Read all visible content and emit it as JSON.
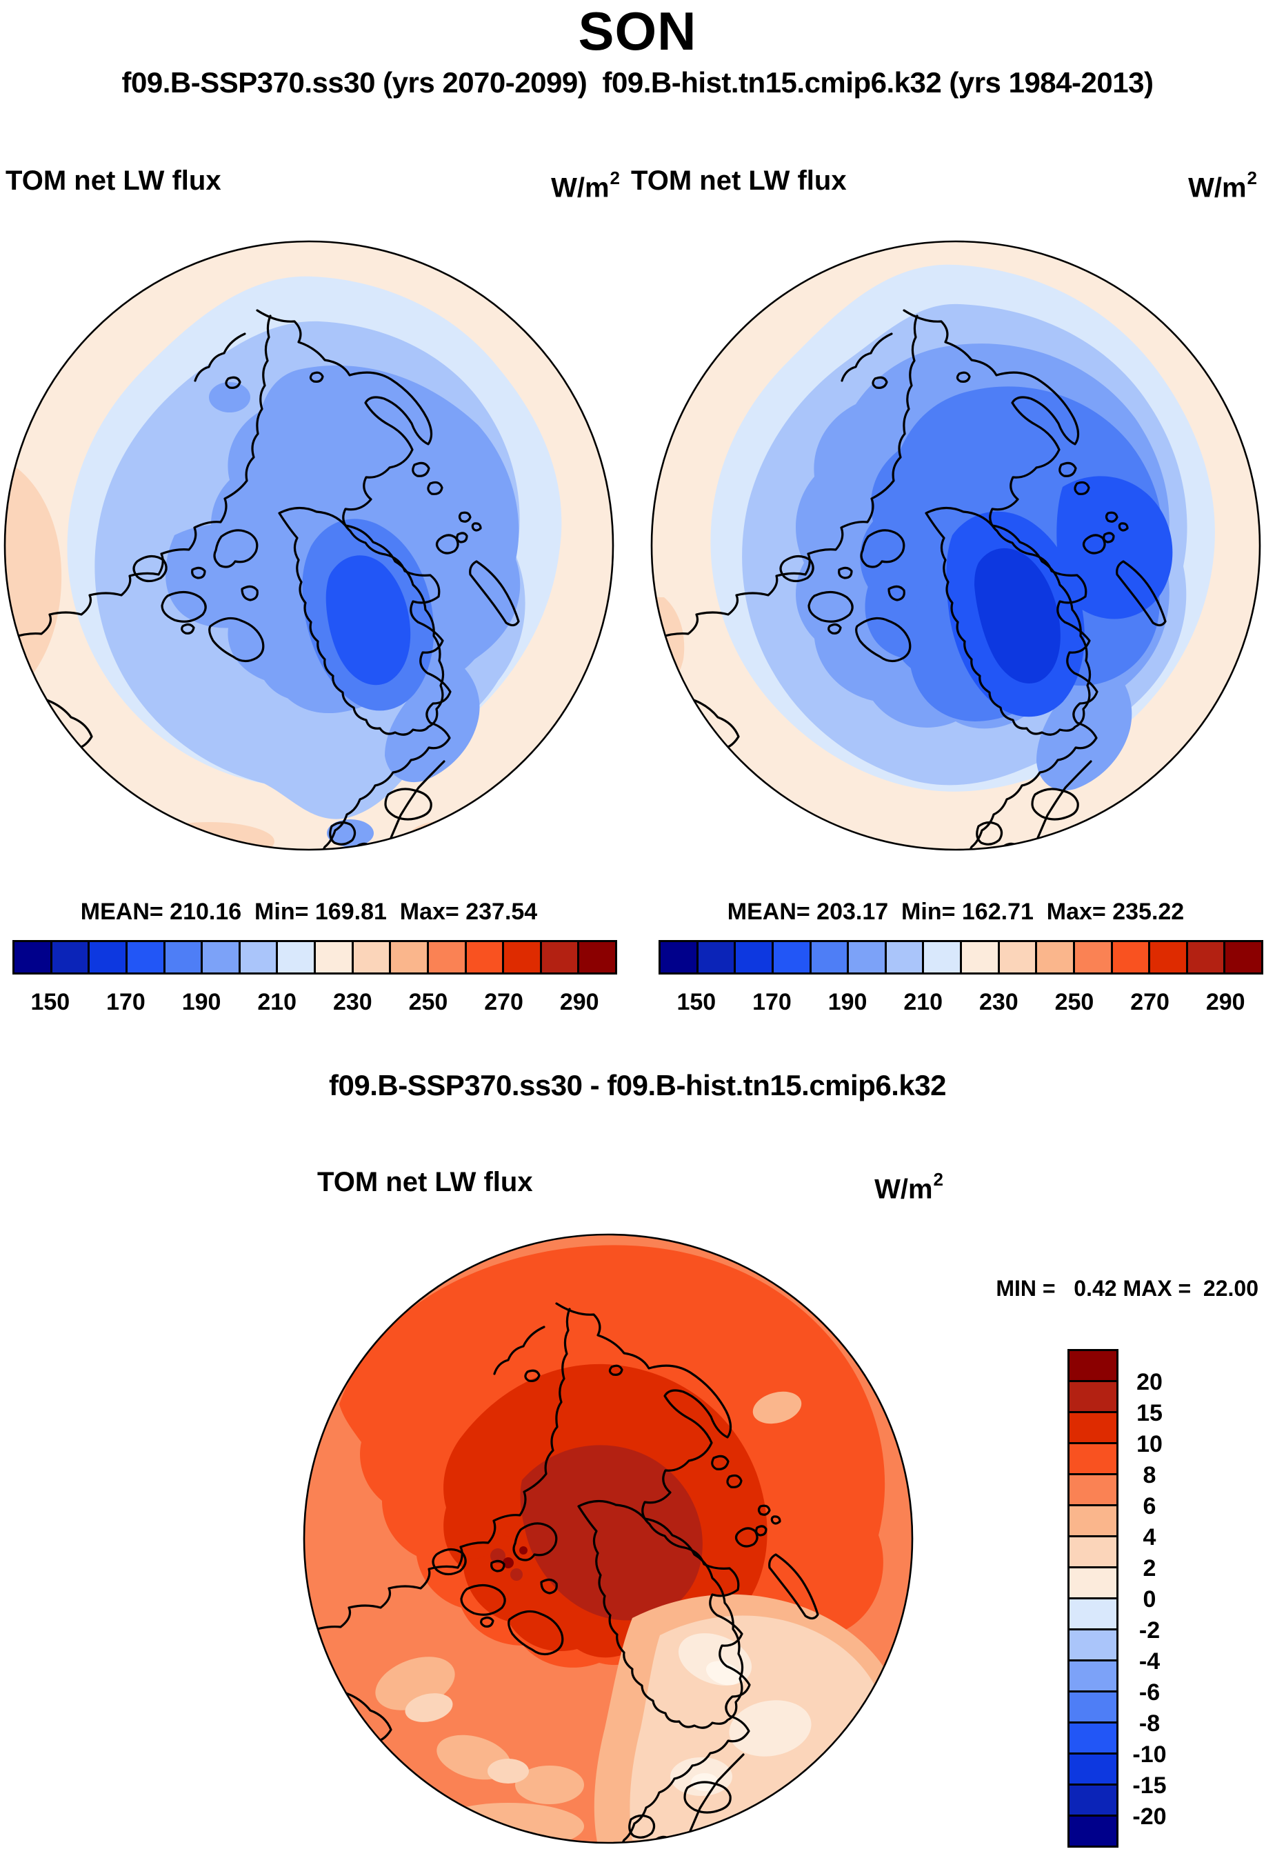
{
  "header": {
    "title": "SON",
    "subtitle": "f09.B-SSP370.ss30 (yrs 2070-2099)  f09.B-hist.tn15.cmip6.k32 (yrs 1984-2013)"
  },
  "panels": {
    "ssp": {
      "variable": "TOM net LW flux",
      "units_base": "W/m",
      "units_exp": "2",
      "stats": "MEAN= 210.16  Min= 169.81  Max= 237.54"
    },
    "hist": {
      "variable": "TOM net LW flux",
      "units_base": "W/m",
      "units_exp": "2",
      "stats": "MEAN= 203.17  Min= 162.71  Max= 235.22"
    },
    "diff": {
      "title": "f09.B-SSP370.ss30 - f09.B-hist.tn15.cmip6.k32",
      "variable": "TOM net LW flux",
      "units_base": "W/m",
      "units_exp": "2",
      "minmax": "MIN =   0.42 MAX =  22.00"
    }
  },
  "colorbar": {
    "ticks": [
      "150",
      "170",
      "190",
      "210",
      "230",
      "250",
      "270",
      "290"
    ],
    "colors": [
      "#00008B",
      "#0B24B8",
      "#0D38E0",
      "#2256F6",
      "#4E7EF6",
      "#7CA2F8",
      "#AAC5FA",
      "#D9E8FC",
      "#FCEBDC",
      "#FBD5BA",
      "#FAB68C",
      "#FA8254",
      "#F95220",
      "#DE2B00",
      "#B32112",
      "#8B0000"
    ]
  },
  "diff_colorbar": {
    "ticks": [
      "20",
      "15",
      "10",
      "8",
      "6",
      "4",
      "2",
      "0",
      "-2",
      "-4",
      "-6",
      "-8",
      "-10",
      "-15",
      "-20"
    ],
    "colors": [
      "#8B0000",
      "#B32112",
      "#DE2B00",
      "#F95220",
      "#FA8254",
      "#FAB68C",
      "#FBD5BA",
      "#FCEBDC",
      "#D9E8FC",
      "#AAC5FA",
      "#7CA2F8",
      "#4E7EF6",
      "#2256F6",
      "#0D38E0",
      "#0B24B8",
      "#00008B"
    ]
  },
  "chart_data": [
    {
      "type": "heatmap",
      "subtype": "filled-contour polar stereographic map",
      "title": "f09.B-SSP370.ss30",
      "season": "SON",
      "years": "2070-2099",
      "variable": "TOM net LW flux",
      "units": "W/m2",
      "stats": {
        "mean": 210.16,
        "min": 169.81,
        "max": 237.54
      },
      "contour_levels": [
        150,
        160,
        170,
        180,
        190,
        200,
        210,
        220,
        230,
        240,
        250,
        260,
        270,
        280,
        290
      ],
      "colorbar_ticks": [
        150,
        170,
        190,
        210,
        230,
        250,
        270,
        290
      ],
      "legend_position": "below",
      "palette": "blue-to-red diverging, 16 bins"
    },
    {
      "type": "heatmap",
      "subtype": "filled-contour polar stereographic map",
      "title": "f09.B-hist.tn15.cmip6.k32",
      "season": "SON",
      "years": "1984-2013",
      "variable": "TOM net LW flux",
      "units": "W/m2",
      "stats": {
        "mean": 203.17,
        "min": 162.71,
        "max": 235.22
      },
      "contour_levels": [
        150,
        160,
        170,
        180,
        190,
        200,
        210,
        220,
        230,
        240,
        250,
        260,
        270,
        280,
        290
      ],
      "colorbar_ticks": [
        150,
        170,
        190,
        210,
        230,
        250,
        270,
        290
      ],
      "legend_position": "below",
      "palette": "blue-to-red diverging, 16 bins"
    },
    {
      "type": "heatmap",
      "subtype": "filled-contour polar stereographic difference map",
      "title": "f09.B-SSP370.ss30 - f09.B-hist.tn15.cmip6.k32",
      "variable": "TOM net LW flux",
      "units": "W/m2",
      "stats": {
        "min": 0.42,
        "max": 22.0
      },
      "contour_levels": [
        -20,
        -15,
        -10,
        -8,
        -6,
        -4,
        -2,
        0,
        2,
        4,
        6,
        8,
        10,
        15,
        20
      ],
      "legend_position": "right vertical",
      "palette": "blue-to-red diverging, 16 bins"
    }
  ]
}
